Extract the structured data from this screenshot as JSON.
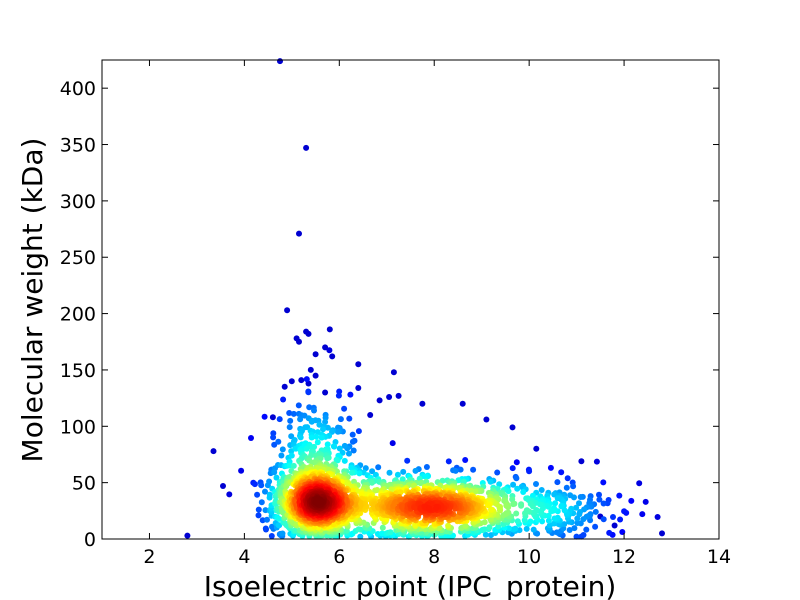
{
  "chart_data": {
    "type": "scatter",
    "title": "",
    "xlabel": "Isoelectric point (IPC_protein)",
    "ylabel": "Molecular weight (kDa)",
    "xlim": [
      1,
      14
    ],
    "ylim": [
      0,
      425
    ],
    "xticks": [
      2,
      4,
      6,
      8,
      10,
      12,
      14
    ],
    "yticks": [
      0,
      50,
      100,
      150,
      200,
      250,
      300,
      350,
      400
    ],
    "grid": false,
    "legend": "none",
    "color_scale": "jet (point density: blue = low, red = high)",
    "colors": {
      "low_density": "#00008f",
      "mid_density": "#00bfff",
      "high_density": "#e00000"
    },
    "points": [
      {
        "x": 4.75,
        "y": 424
      },
      {
        "x": 5.3,
        "y": 347
      },
      {
        "x": 5.15,
        "y": 271
      },
      {
        "x": 4.9,
        "y": 203
      },
      {
        "x": 5.3,
        "y": 184
      },
      {
        "x": 5.35,
        "y": 182
      },
      {
        "x": 5.8,
        "y": 186
      },
      {
        "x": 5.1,
        "y": 178
      },
      {
        "x": 5.15,
        "y": 175
      },
      {
        "x": 5.7,
        "y": 170
      },
      {
        "x": 5.5,
        "y": 164
      },
      {
        "x": 5.85,
        "y": 162
      },
      {
        "x": 6.4,
        "y": 155
      },
      {
        "x": 5.4,
        "y": 150
      },
      {
        "x": 7.15,
        "y": 148
      },
      {
        "x": 5.5,
        "y": 145
      },
      {
        "x": 5.0,
        "y": 140
      },
      {
        "x": 5.2,
        "y": 141
      },
      {
        "x": 5.35,
        "y": 138
      },
      {
        "x": 4.85,
        "y": 135
      },
      {
        "x": 6.4,
        "y": 134
      },
      {
        "x": 5.7,
        "y": 130
      },
      {
        "x": 7.25,
        "y": 127
      },
      {
        "x": 7.05,
        "y": 126
      },
      {
        "x": 6.85,
        "y": 123
      },
      {
        "x": 8.6,
        "y": 120
      },
      {
        "x": 7.75,
        "y": 120
      },
      {
        "x": 6.65,
        "y": 110
      },
      {
        "x": 4.6,
        "y": 108
      },
      {
        "x": 9.1,
        "y": 106
      },
      {
        "x": 9.65,
        "y": 99
      },
      {
        "x": 3.35,
        "y": 78
      },
      {
        "x": 10.15,
        "y": 80
      },
      {
        "x": 3.55,
        "y": 47
      },
      {
        "x": 11.1,
        "y": 69
      },
      {
        "x": 2.8,
        "y": 3
      },
      {
        "x": 12.8,
        "y": 5
      },
      {
        "x": 11.8,
        "y": 12
      },
      {
        "x": 11.5,
        "y": 20
      }
    ],
    "dense_regions": [
      {
        "x_center": 5.5,
        "y_center": 32,
        "x_spread": 0.45,
        "y_spread": 16,
        "count": 900
      },
      {
        "x_center": 8.3,
        "y_center": 28,
        "x_spread": 0.9,
        "y_spread": 14,
        "count": 700
      },
      {
        "x_center": 7.0,
        "y_center": 30,
        "x_spread": 0.9,
        "y_spread": 16,
        "count": 400
      },
      {
        "x_center": 5.5,
        "y_center": 70,
        "x_spread": 0.5,
        "y_spread": 30,
        "count": 260
      },
      {
        "x_center": 10.5,
        "y_center": 25,
        "x_spread": 0.7,
        "y_spread": 15,
        "count": 180
      }
    ]
  }
}
